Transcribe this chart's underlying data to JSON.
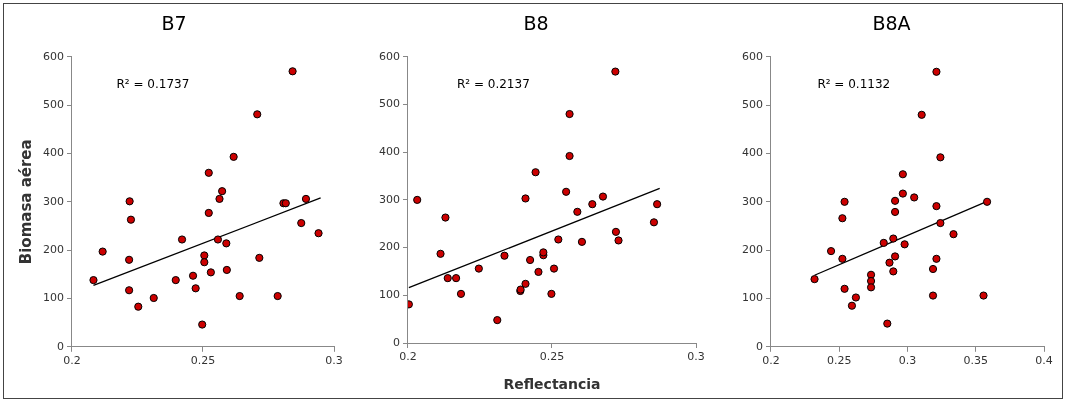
{
  "chart_data": [
    {
      "type": "scatter",
      "title": "B7",
      "ylabel": "Biomasa aérea",
      "xlim": [
        0.2,
        0.3
      ],
      "xticks": [
        0.2,
        0.25,
        0.3
      ],
      "ylim": [
        0,
        600
      ],
      "yticks": [
        0,
        100,
        200,
        300,
        400,
        500,
        600
      ],
      "grid": false,
      "legend": false,
      "annotations": [
        "R² = 0.1737"
      ],
      "series": [
        {
          "color": "#cc0000",
          "marker": "circle",
          "x": [
            0.2082,
            0.2117,
            0.222,
            0.2225,
            0.2218,
            0.2218,
            0.2253,
            0.2312,
            0.2396,
            0.242,
            0.2462,
            0.2472,
            0.2497,
            0.2505,
            0.2505,
            0.2522,
            0.2522,
            0.253,
            0.2557,
            0.2563,
            0.2573,
            0.2589,
            0.2591,
            0.2617,
            0.264,
            0.2707,
            0.2715,
            0.2785,
            0.2807,
            0.2816,
            0.2842,
            0.2875,
            0.2893,
            0.2941
          ],
          "values": [
            138,
            197,
            301,
            263,
            180,
            117,
            83,
            101,
            138,
            222,
            147,
            121,
            46,
            189,
            175,
            360,
            277,
            154,
            222,
            306,
            322,
            214,
            159,
            393,
            105,
            481,
            184,
            105,
            297,
            297,
            570,
            256,
            306,
            235
          ]
        },
        {
          "type": "line",
          "marker": "none",
          "color": "#000000",
          "x": [
            0.2082,
            0.2949
          ],
          "values": [
            127,
            308
          ]
        }
      ]
    },
    {
      "type": "scatter",
      "title": "B8",
      "xlabel": "Reflectancia",
      "xlim": [
        0.2,
        0.3
      ],
      "xticks": [
        0.2,
        0.25,
        0.3
      ],
      "ylim": [
        0,
        600
      ],
      "yticks": [
        0,
        100,
        200,
        300,
        400,
        500,
        600
      ],
      "grid": false,
      "legend": false,
      "annotations": [
        "R² = 0.2137"
      ],
      "series": [
        {
          "color": "#cc0000",
          "marker": "circle",
          "x": [
            0.2003,
            0.2032,
            0.2113,
            0.213,
            0.2138,
            0.2167,
            0.2184,
            0.2246,
            0.231,
            0.2335,
            0.239,
            0.2391,
            0.2408,
            0.2408,
            0.2424,
            0.2443,
            0.2453,
            0.247,
            0.247,
            0.2498,
            0.2507,
            0.2522,
            0.2549,
            0.2561,
            0.2561,
            0.2588,
            0.2604,
            0.264,
            0.2677,
            0.272,
            0.2722,
            0.2731,
            0.2854,
            0.2865
          ],
          "values": [
            81,
            300,
            187,
            263,
            136,
            136,
            103,
            156,
            48,
            183,
            109,
            112,
            124,
            303,
            174,
            358,
            149,
            184,
            190,
            103,
            156,
            217,
            317,
            480,
            392,
            275,
            212,
            291,
            307,
            569,
            233,
            215,
            253,
            291
          ]
        },
        {
          "type": "line",
          "marker": "none",
          "color": "#000000",
          "x": [
            0.2003,
            0.2874
          ],
          "values": [
            116,
            324
          ]
        }
      ]
    },
    {
      "type": "scatter",
      "title": "B8A",
      "xlim": [
        0.2,
        0.4
      ],
      "xticks": [
        0.2,
        0.25,
        0.3,
        0.35,
        0.4
      ],
      "ylim": [
        0,
        600
      ],
      "yticks": [
        0,
        100,
        200,
        300,
        400,
        500,
        600
      ],
      "grid": false,
      "legend": false,
      "annotations": [
        "R² = 0.1132"
      ],
      "series": [
        {
          "color": "#cc0000",
          "marker": "circle",
          "x": [
            0.2319,
            0.244,
            0.2523,
            0.2539,
            0.2523,
            0.2539,
            0.2593,
            0.2622,
            0.2733,
            0.2733,
            0.2733,
            0.2826,
            0.2852,
            0.2868,
            0.2896,
            0.2896,
            0.2909,
            0.2909,
            0.2909,
            0.2966,
            0.2966,
            0.2979,
            0.3049,
            0.3104,
            0.3187,
            0.3187,
            0.3212,
            0.3212,
            0.3212,
            0.3241,
            0.3241,
            0.3337,
            0.3557,
            0.3583
          ],
          "values": [
            140,
            198,
            266,
            300,
            182,
            120,
            85,
            102,
            149,
            136,
            123,
            215,
            48,
            174,
            156,
            224,
            187,
            302,
            279,
            357,
            317,
            212,
            309,
            480,
            106,
            161,
            569,
            291,
            182,
            392,
            256,
            233,
            106,
            300
          ]
        },
        {
          "type": "line",
          "marker": "none",
          "color": "#000000",
          "x": [
            0.2319,
            0.3583
          ],
          "values": [
            148,
            301
          ]
        }
      ]
    }
  ]
}
